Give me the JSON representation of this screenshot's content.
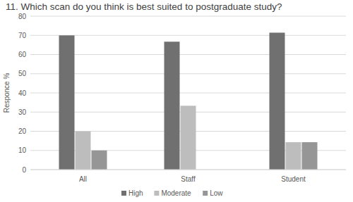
{
  "chart_data": {
    "type": "bar",
    "title": "11. Which scan do you think is best suited to postgraduate study?",
    "y_label": "Responce %",
    "categories": [
      "All",
      "Staff",
      "Student"
    ],
    "series": [
      {
        "name": "High",
        "color": "#707070",
        "values": [
          70,
          66.7,
          71.4
        ]
      },
      {
        "name": "Moderate",
        "color": "#bdbdbd",
        "values": [
          20,
          33.3,
          14.3
        ]
      },
      {
        "name": "Low",
        "color": "#969696",
        "values": [
          10,
          0,
          14.3
        ]
      }
    ],
    "ylim": [
      0,
      80
    ],
    "yticks": [
      0,
      10,
      20,
      30,
      40,
      50,
      60,
      70,
      80
    ],
    "grid": true,
    "legend": "bottom"
  }
}
